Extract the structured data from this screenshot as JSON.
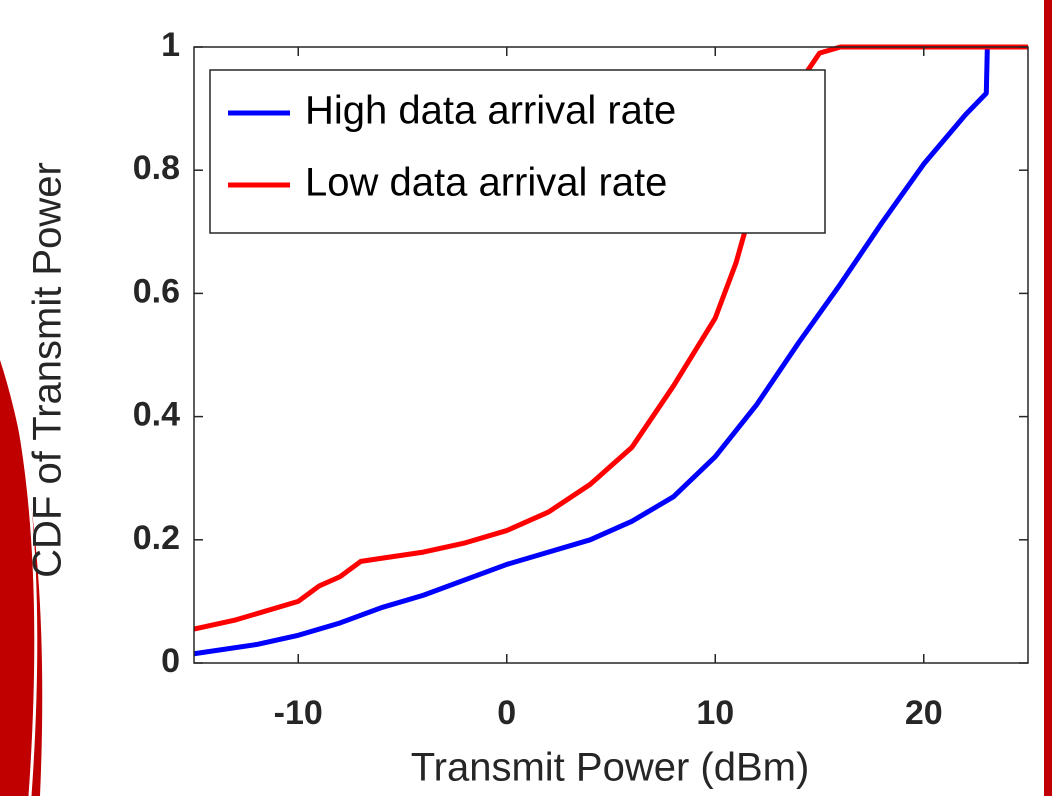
{
  "chart_data": {
    "type": "line",
    "xlabel": "Transmit Power (dBm)",
    "ylabel": "CDF of Transmit Power",
    "xlim": [
      -15,
      25
    ],
    "xticks": [
      -10,
      0,
      10,
      20
    ],
    "ylim": [
      0,
      1
    ],
    "yticks": [
      0,
      0.2,
      0.4,
      0.6,
      0.8,
      1
    ],
    "legend": "upper left",
    "series": [
      {
        "name": "High data arrival rate",
        "color": "#0000ff",
        "x": [
          -15,
          -12,
          -10,
          -8,
          -6,
          -4,
          -2,
          0,
          2,
          4,
          6,
          8,
          10,
          12,
          14,
          16,
          18,
          20,
          22,
          23,
          23.05,
          25
        ],
        "values": [
          0.015,
          0.03,
          0.045,
          0.065,
          0.09,
          0.11,
          0.135,
          0.16,
          0.18,
          0.2,
          0.23,
          0.27,
          0.335,
          0.42,
          0.52,
          0.615,
          0.715,
          0.81,
          0.89,
          0.925,
          1,
          1
        ]
      },
      {
        "name": "Low data arrival rate",
        "color": "#ff0000",
        "x": [
          -15,
          -13,
          -10,
          -9,
          -8,
          -7,
          -6,
          -4,
          -2,
          0,
          2,
          4,
          6,
          8,
          10,
          11,
          12,
          13,
          14,
          15,
          16,
          25
        ],
        "values": [
          0.055,
          0.07,
          0.1,
          0.125,
          0.14,
          0.165,
          0.17,
          0.18,
          0.195,
          0.215,
          0.245,
          0.29,
          0.35,
          0.45,
          0.56,
          0.65,
          0.77,
          0.87,
          0.94,
          0.99,
          1,
          1
        ]
      }
    ]
  }
}
